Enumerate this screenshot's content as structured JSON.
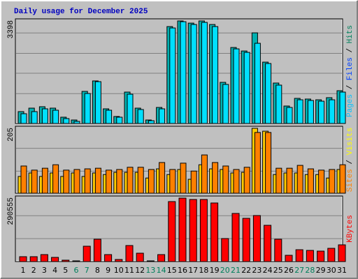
{
  "chart_data": {
    "type": "bar",
    "title": "Daily usage for December 2025",
    "title_color": "#0000c0",
    "categories": [
      "1",
      "2",
      "3",
      "4",
      "5",
      "6",
      "7",
      "8",
      "9",
      "10",
      "11",
      "12",
      "13",
      "14",
      "15",
      "16",
      "17",
      "18",
      "19",
      "20",
      "21",
      "22",
      "23",
      "24",
      "25",
      "26",
      "27",
      "28",
      "29",
      "30",
      "31"
    ],
    "label_colors": [
      "#000",
      "#000",
      "#000",
      "#000",
      "#000",
      "#00805c",
      "#00805c",
      "#000",
      "#000",
      "#000",
      "#000",
      "#000",
      "#00805c",
      "#00805c",
      "#000",
      "#000",
      "#000",
      "#000",
      "#000",
      "#00805c",
      "#00805c",
      "#000",
      "#000",
      "#000",
      "#000",
      "#000",
      "#00805c",
      "#00805c",
      "#000",
      "#000",
      "#000"
    ],
    "panels": [
      {
        "ylim": [
          0,
          3398
        ],
        "legend": [
          {
            "text": "Pages",
            "color": "#00c0ff"
          },
          {
            "text": " / ",
            "color": "#000000"
          },
          {
            "text": "Files",
            "color": "#0040ff"
          },
          {
            "text": " / ",
            "color": "#000000"
          },
          {
            "text": "Hits",
            "color": "#00805c"
          }
        ],
        "series": [
          {
            "color": "#00b0b0",
            "values": [
              393,
              508,
              555,
              508,
              208,
              115,
              1063,
              1410,
              485,
              231,
              1040,
              508,
              115,
              531,
              3211,
              3398,
              3326,
              3398,
              3280,
              1363,
              2518,
              2402,
              3003,
              2033,
              1340,
              578,
              832,
              809,
              785,
              855,
              1086
            ]
          },
          {
            "color": "#00e0ff",
            "values": [
              323,
              393,
              485,
              439,
              162,
              69,
              993,
              1386,
              439,
              208,
              970,
              462,
              92,
              485,
              3165,
              3373,
              3280,
              3350,
              3211,
              1294,
              2472,
              2356,
              2657,
              1987,
              1271,
              531,
              785,
              762,
              739,
              785,
              1040
            ]
          }
        ]
      },
      {
        "ylim": [
          0,
          205
        ],
        "legend": [
          {
            "text": "Sites",
            "color": "#ff8000"
          },
          {
            "text": " / ",
            "color": "#000000"
          },
          {
            "text": "Visits",
            "color": "#ffff00"
          }
        ],
        "series": [
          {
            "color": "#ffcc00",
            "values": [
              53,
              64,
              53,
              64,
              53,
              64,
              53,
              64,
              59,
              66,
              66,
              66,
              48,
              77,
              59,
              75,
              44,
              90,
              77,
              75,
              64,
              66,
              205,
              196,
              59,
              64,
              64,
              59,
              59,
              48,
              75
            ]
          },
          {
            "color": "#ff8000",
            "values": [
              86,
              73,
              79,
              90,
              73,
              75,
              77,
              79,
              73,
              75,
              82,
              82,
              75,
              97,
              75,
              95,
              70,
              121,
              97,
              86,
              75,
              82,
              192,
              192,
              79,
              79,
              88,
              77,
              73,
              75,
              90
            ]
          }
        ]
      },
      {
        "ylim": [
          0,
          290555
        ],
        "legend": [
          {
            "text": "KBytes",
            "color": "#ff0000"
          }
        ],
        "series": [
          {
            "color": "#ff0000",
            "values": [
              22352,
              22352,
              31931,
              19159,
              6386,
              3193,
              70248,
              102177,
              31931,
              9579,
              73441,
              38317,
              3193,
              31931,
              274590,
              290555,
              284169,
              284169,
              268204,
              105370,
              220316,
              197965,
              210738,
              166035,
              102177,
              28738,
              54282,
              51089,
              47896,
              60669,
              76634
            ]
          }
        ]
      }
    ]
  }
}
